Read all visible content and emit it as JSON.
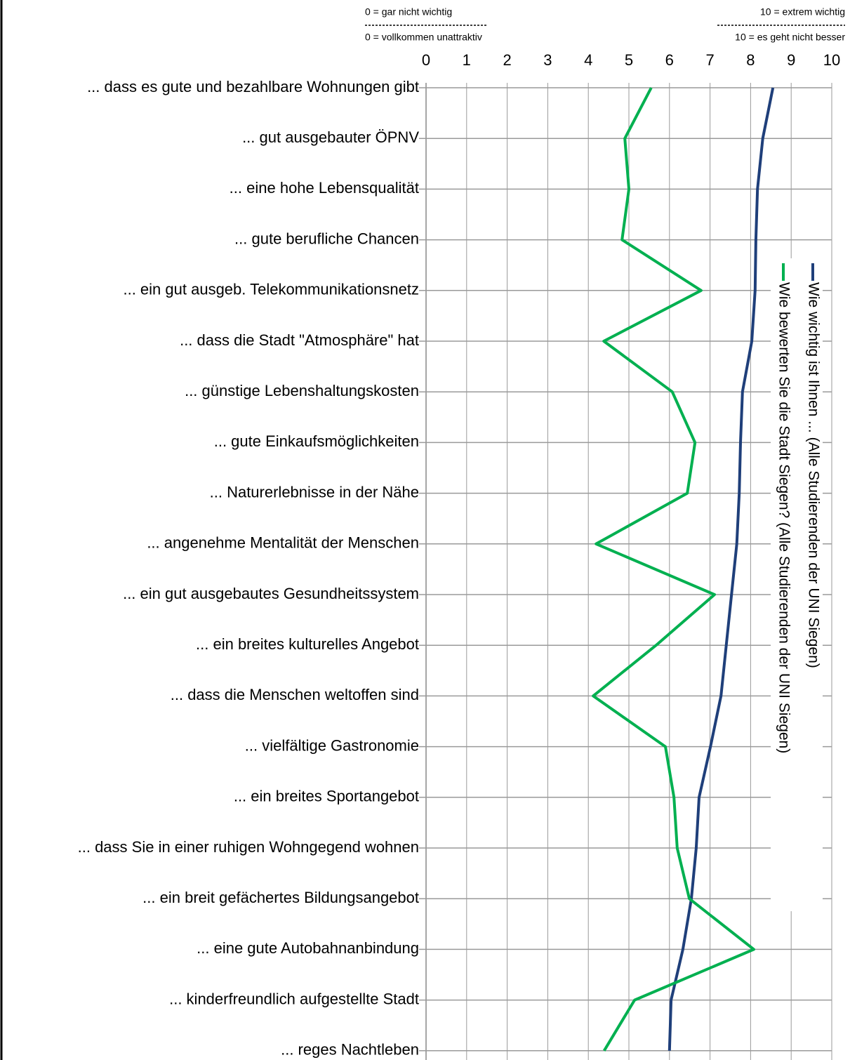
{
  "chart_data": {
    "type": "line",
    "notes": {
      "left_top": "0 = gar nicht wichtig",
      "right_top": "10 = extrem wichtig",
      "left_bottom": "0 = vollkommen unattraktiv",
      "right_bottom": "10 = es geht nicht besser"
    },
    "categories": [
      "... dass es gute und bezahlbare Wohnungen gibt",
      "... gut ausgebauter ÖPNV",
      "... eine hohe Lebensqualität",
      "... gute berufliche Chancen",
      "... ein gut ausgeb. Telekommunikationsnetz",
      "... dass die Stadt \"Atmosphäre\" hat",
      "... günstige Lebenshaltungskosten",
      "... gute Einkaufsmöglichkeiten",
      "... Naturerlebnisse in der Nähe",
      "... angenehme Mentalität der Menschen",
      "... ein gut ausgebautes Gesundheitssystem",
      "... ein breites kulturelles Angebot",
      "... dass die Menschen weltoffen sind",
      "... vielfältige Gastronomie",
      "... ein breites Sportangebot",
      "... dass Sie in einer ruhigen Wohngegend wohnen",
      "... ein breit gefächertes Bildungsangebot",
      "... eine gute Autobahnanbindung",
      "... kinderfreundlich aufgestellte Stadt",
      "... reges Nachtleben"
    ],
    "series": [
      {
        "name": "Wie wichtig ist Ihnen ... (Alle Studierenden der UNI Siegen)",
        "color": "#1f3f7a",
        "values": [
          8.55,
          8.3,
          8.17,
          8.13,
          8.11,
          8.03,
          7.8,
          7.75,
          7.72,
          7.66,
          7.53,
          7.4,
          7.27,
          7.01,
          6.73,
          6.66,
          6.54,
          6.33,
          6.04,
          6.0
        ]
      },
      {
        "name": "Wie bewerten Sie die Stadt Siegen? (Alle Studierenden der UNI Siegen)",
        "color": "#00b050",
        "values": [
          5.55,
          4.9,
          5.0,
          4.83,
          6.78,
          4.38,
          6.07,
          6.63,
          6.44,
          4.19,
          7.11,
          5.67,
          4.12,
          5.9,
          6.11,
          6.19,
          6.49,
          8.08,
          5.14,
          4.39
        ]
      }
    ],
    "xlim": [
      0,
      10
    ],
    "xticks": [
      0,
      1,
      2,
      3,
      4,
      5,
      6,
      7,
      8,
      9,
      10
    ],
    "grid": true,
    "legend": "right"
  }
}
